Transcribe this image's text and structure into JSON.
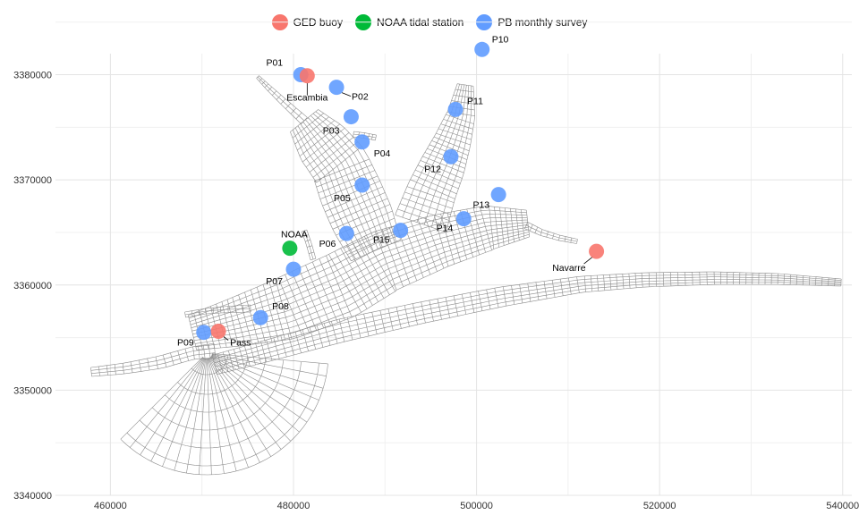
{
  "legend": {
    "items": [
      {
        "label": "GED buoy",
        "color": "#F8766D"
      },
      {
        "label": "NOAA tidal station",
        "color": "#00BA38"
      },
      {
        "label": "PB monthly survey",
        "color": "#619CFF"
      }
    ]
  },
  "chart_data": {
    "type": "scatter",
    "title": "",
    "xlabel": "",
    "ylabel": "",
    "xlim": [
      454000,
      541000
    ],
    "ylim": [
      3340000,
      3382000
    ],
    "x_ticks": [
      460000,
      480000,
      500000,
      520000,
      540000
    ],
    "x_tick_labels": [
      "460000",
      "480000",
      "500000",
      "520000",
      "540000"
    ],
    "y_ticks": [
      3340000,
      3350000,
      3360000,
      3370000,
      3380000
    ],
    "y_tick_labels": [
      "3340000",
      "3350000",
      "3360000",
      "3370000",
      "3380000"
    ],
    "legend_position": "top",
    "series": [
      {
        "name": "GED buoy",
        "color": "#F8766D",
        "points": [
          {
            "label": "Escambia",
            "x": 481500,
            "y": 3379900
          },
          {
            "label": "Pass",
            "x": 471800,
            "y": 3355600
          },
          {
            "label": "Navarre",
            "x": 513100,
            "y": 3363200
          }
        ]
      },
      {
        "name": "NOAA tidal station",
        "color": "#00BA38",
        "points": [
          {
            "label": "NOAA",
            "x": 479600,
            "y": 3363500
          }
        ]
      },
      {
        "name": "PB monthly survey",
        "color": "#619CFF",
        "points": [
          {
            "label": "P01",
            "x": 480800,
            "y": 3380000
          },
          {
            "label": "P02",
            "x": 484700,
            "y": 3378800
          },
          {
            "label": "P03",
            "x": 486300,
            "y": 3376000
          },
          {
            "label": "P04",
            "x": 487500,
            "y": 3373600
          },
          {
            "label": "P05",
            "x": 487500,
            "y": 3369500
          },
          {
            "label": "P06",
            "x": 485800,
            "y": 3364900
          },
          {
            "label": "P07",
            "x": 480000,
            "y": 3361500
          },
          {
            "label": "P08",
            "x": 476400,
            "y": 3356900
          },
          {
            "label": "P09",
            "x": 470200,
            "y": 3355500
          },
          {
            "label": "P10",
            "x": 500600,
            "y": 3382400
          },
          {
            "label": "P11",
            "x": 497700,
            "y": 3376700
          },
          {
            "label": "P12",
            "x": 497200,
            "y": 3372200
          },
          {
            "label": "P13",
            "x": 502400,
            "y": 3368600
          },
          {
            "label": "P14",
            "x": 498600,
            "y": 3366300
          },
          {
            "label": "P15",
            "x": 491700,
            "y": 3365200
          }
        ]
      }
    ]
  }
}
